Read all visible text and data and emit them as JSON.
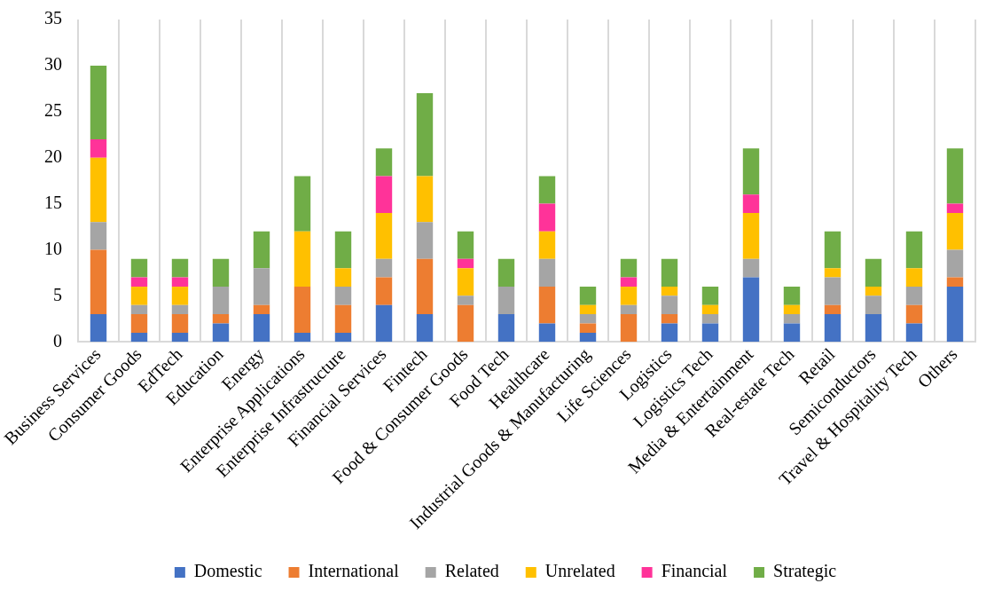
{
  "chart_data": {
    "type": "bar",
    "stacked": true,
    "grid": "x",
    "legend": "bottom",
    "categories": [
      "Business Services",
      "Consumer Goods",
      "EdTech",
      "Education",
      "Energy",
      "Enterprise Applications",
      "Enterprise Infrastructure",
      "Financial Services",
      "Fintech",
      "Food & Consumer Goods",
      "Food Tech",
      "Healthcare",
      "Industrial Goods & Manufacturing",
      "Life Sciences",
      "Logistics",
      "Logistics Tech",
      "Media & Entertainment",
      "Real-estate Tech",
      "Retail",
      "Semiconductors",
      "Travel & Hospitality Tech",
      "Others"
    ],
    "ylim": [
      0,
      35
    ],
    "yticks": [
      0,
      5,
      10,
      15,
      20,
      25,
      30,
      35
    ],
    "series": [
      {
        "name": "Domestic",
        "color": "#4472c4",
        "values": [
          3,
          1,
          1,
          2,
          3,
          1,
          1,
          4,
          3,
          0,
          3,
          2,
          1,
          0,
          2,
          2,
          7,
          2,
          3,
          3,
          2,
          6
        ]
      },
      {
        "name": "International",
        "color": "#ed7d31",
        "values": [
          7,
          2,
          2,
          1,
          1,
          5,
          3,
          3,
          6,
          4,
          0,
          4,
          1,
          3,
          1,
          0,
          0,
          0,
          1,
          0,
          2,
          1
        ]
      },
      {
        "name": "Related",
        "color": "#a5a5a5",
        "values": [
          3,
          1,
          1,
          3,
          4,
          0,
          2,
          2,
          4,
          1,
          3,
          3,
          1,
          1,
          2,
          1,
          2,
          1,
          3,
          2,
          2,
          3
        ]
      },
      {
        "name": "Unrelated",
        "color": "#ffc000",
        "values": [
          7,
          2,
          2,
          0,
          0,
          6,
          2,
          5,
          5,
          3,
          0,
          3,
          1,
          2,
          1,
          1,
          5,
          1,
          1,
          1,
          2,
          4
        ]
      },
      {
        "name": "Financial",
        "color": "#ff3399",
        "values": [
          2,
          1,
          1,
          0,
          0,
          0,
          0,
          4,
          0,
          1,
          0,
          3,
          0,
          1,
          0,
          0,
          2,
          0,
          0,
          0,
          0,
          1
        ]
      },
      {
        "name": "Strategic",
        "color": "#70ad47",
        "values": [
          8,
          2,
          2,
          3,
          4,
          6,
          4,
          3,
          9,
          3,
          3,
          3,
          2,
          2,
          3,
          2,
          5,
          2,
          4,
          3,
          4,
          6
        ]
      }
    ]
  }
}
